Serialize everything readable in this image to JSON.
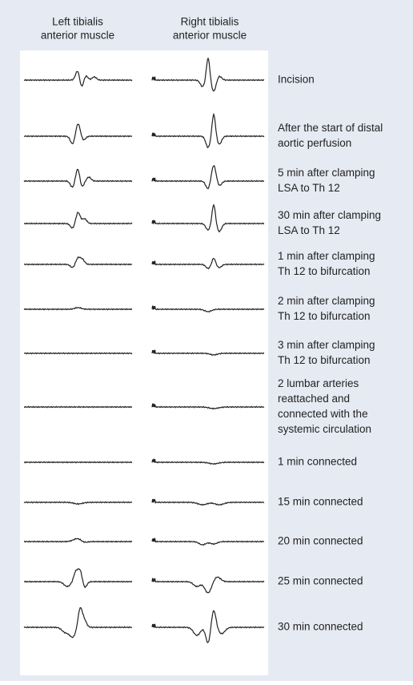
{
  "header": {
    "left": [
      "Left tibialis",
      "anterior muscle"
    ],
    "right": [
      "Right tibialis",
      "anterior muscle"
    ]
  },
  "rows": [
    {
      "label": [
        "Incision"
      ]
    },
    {
      "label": [
        "After the start of distal",
        "aortic perfusion"
      ]
    },
    {
      "label": [
        "5 min after clamping",
        "LSA to Th 12"
      ]
    },
    {
      "label": [
        "30 min after clamping",
        "LSA to Th 12"
      ]
    },
    {
      "label": [
        "1 min after clamping",
        "Th 12 to bifurcation"
      ]
    },
    {
      "label": [
        "2 min after clamping",
        "Th 12 to bifurcation"
      ]
    },
    {
      "label": [
        "3 min after clamping",
        "Th 12 to bifurcation"
      ]
    },
    {
      "label": [
        "2 lumbar arteries",
        "reattached and",
        "connected with the",
        "systemic circulation"
      ]
    },
    {
      "label": [
        "1 min connected"
      ]
    },
    {
      "label": [
        "15 min connected"
      ]
    },
    {
      "label": [
        "20 min connected"
      ]
    },
    {
      "label": [
        "25 min connected"
      ]
    },
    {
      "label": [
        "30 min connected"
      ]
    }
  ]
}
